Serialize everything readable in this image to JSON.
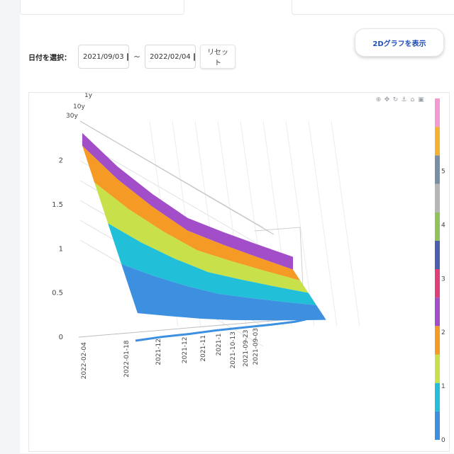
{
  "filter": {
    "label": "日付を選択：",
    "start_date": "2021/09/03",
    "separator": "~",
    "end_date": "2022/02/04",
    "reset_label": "リセット"
  },
  "show2d_label": "2Dグラフを表示",
  "icons": [
    "zoom-icon",
    "pan-icon",
    "orbit-icon",
    "turntable-icon",
    "home-icon",
    "camera-icon"
  ],
  "chart_data": {
    "type": "area",
    "subtype": "3d-surface",
    "z_axis": {
      "range": [
        0,
        2.2
      ],
      "ticks": [
        "0",
        "0.5",
        "1",
        "1.5",
        "2"
      ]
    },
    "depth_ticks": [
      "30y",
      "10y",
      "1y"
    ],
    "x_tick_labels": [
      "2022-02-04",
      "2022-01-18",
      "2021-12",
      "2021-12",
      "2021-11",
      "2021-1",
      "2021-10-13",
      "2021-09-23",
      "2021-09-03"
    ],
    "profile": {
      "dates": [
        "2022-02-04",
        "2022-01-18",
        "2021-12",
        "2021-11",
        "2021-10-13",
        "2021-09-23",
        "2021-09-03"
      ],
      "z_long_end": [
        2.15,
        1.95,
        1.78,
        1.62,
        1.58,
        1.55,
        1.52
      ],
      "z_short_end": [
        0.0,
        0.01,
        0.01,
        0.02,
        0.02,
        0.02,
        0.03
      ]
    },
    "colorscale": {
      "ticks": [
        "0",
        "1",
        "2",
        "3",
        "4",
        "5"
      ],
      "bands": [
        "#3d8fe0",
        "#22c0d8",
        "#c8e04a",
        "#f59a24",
        "#a24ec8",
        "#e0407a",
        "#4a5fb0",
        "#8dc35a",
        "#b6b6b6",
        "#7a8fa6",
        "#f5b22e",
        "#f39ad0"
      ]
    },
    "grid": true
  }
}
